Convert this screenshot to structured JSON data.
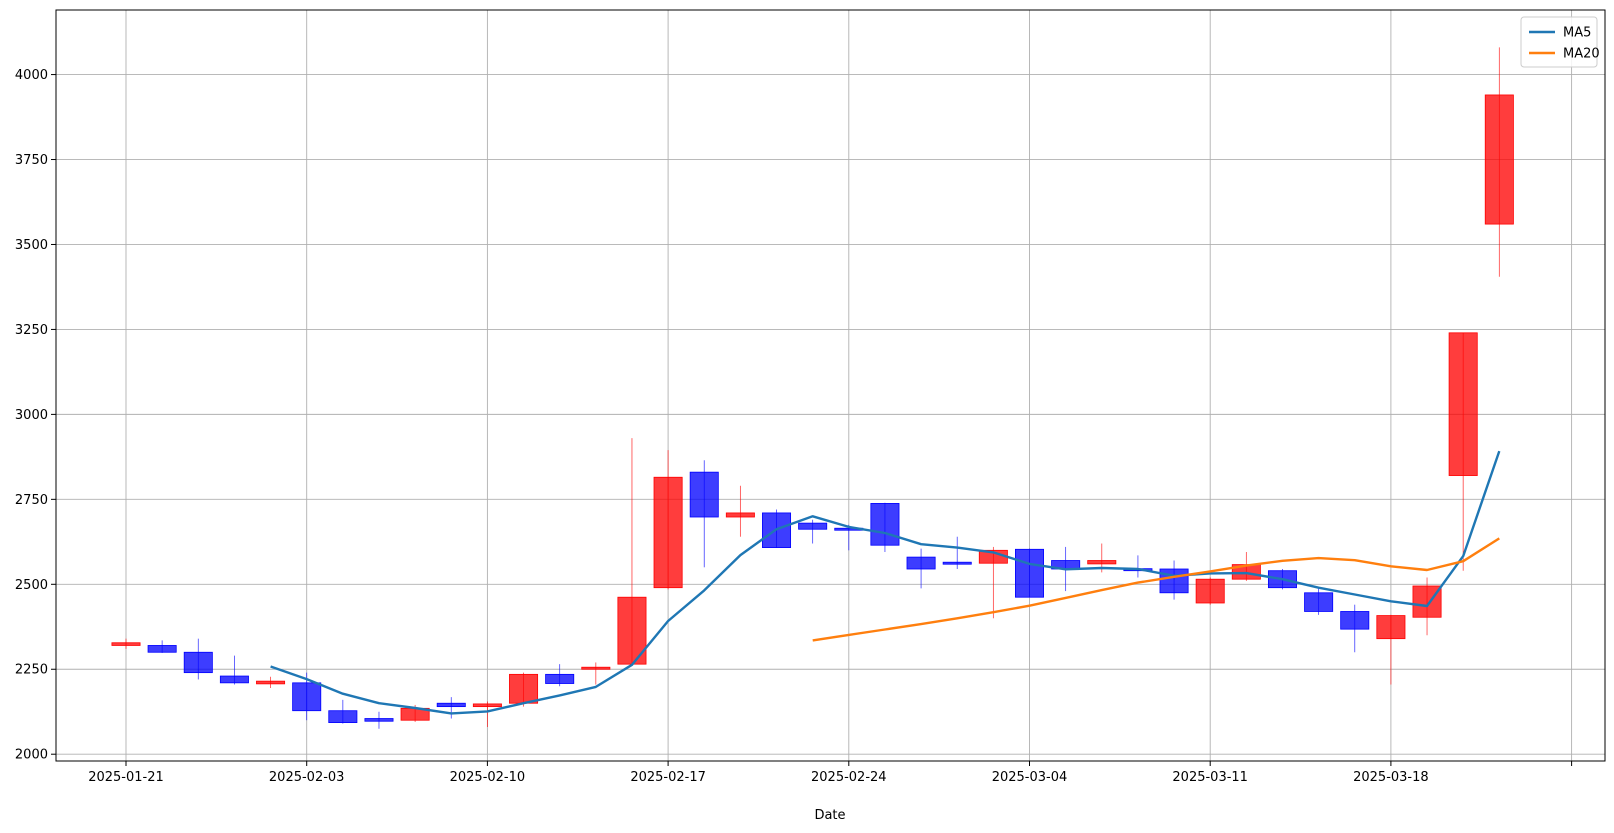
{
  "chart_data": {
    "type": "candlestick",
    "title": "",
    "xlabel": "Date",
    "ylabel": "",
    "ylim": [
      1980,
      4190
    ],
    "y_ticks": [
      2000,
      2250,
      2500,
      2750,
      3000,
      3250,
      3500,
      3750,
      4000
    ],
    "x_ticks": [
      {
        "label": "2025-01-21",
        "index": 0
      },
      {
        "label": "2025-02-03",
        "index": 5
      },
      {
        "label": "2025-02-10",
        "index": 10
      },
      {
        "label": "2025-02-17",
        "index": 15
      },
      {
        "label": "2025-02-24",
        "index": 20
      },
      {
        "label": "2025-03-04",
        "index": 25
      },
      {
        "label": "2025-03-11",
        "index": 30
      },
      {
        "label": "2025-03-18",
        "index": 35
      },
      {
        "label": "",
        "index": 40
      }
    ],
    "grid": true,
    "legend_position": "top-right",
    "up_color": "#ff0000",
    "down_color": "#0000ff",
    "candles": [
      {
        "o": 2320,
        "h": 2340,
        "l": 2310,
        "c": 2328
      },
      {
        "o": 2320,
        "h": 2335,
        "l": 2298,
        "c": 2300
      },
      {
        "o": 2300,
        "h": 2340,
        "l": 2220,
        "c": 2240
      },
      {
        "o": 2230,
        "h": 2290,
        "l": 2205,
        "c": 2210
      },
      {
        "o": 2207,
        "h": 2228,
        "l": 2195,
        "c": 2215
      },
      {
        "o": 2210,
        "h": 2240,
        "l": 2100,
        "c": 2128
      },
      {
        "o": 2128,
        "h": 2160,
        "l": 2090,
        "c": 2093
      },
      {
        "o": 2105,
        "h": 2125,
        "l": 2075,
        "c": 2097
      },
      {
        "o": 2100,
        "h": 2145,
        "l": 2095,
        "c": 2135
      },
      {
        "o": 2150,
        "h": 2168,
        "l": 2105,
        "c": 2140
      },
      {
        "o": 2140,
        "h": 2155,
        "l": 2080,
        "c": 2148
      },
      {
        "o": 2150,
        "h": 2240,
        "l": 2140,
        "c": 2235
      },
      {
        "o": 2235,
        "h": 2265,
        "l": 2200,
        "c": 2208
      },
      {
        "o": 2250,
        "h": 2270,
        "l": 2205,
        "c": 2256
      },
      {
        "o": 2265,
        "h": 2930,
        "l": 2260,
        "c": 2462
      },
      {
        "o": 2490,
        "h": 2895,
        "l": 2485,
        "c": 2815
      },
      {
        "o": 2830,
        "h": 2865,
        "l": 2550,
        "c": 2698
      },
      {
        "o": 2698,
        "h": 2790,
        "l": 2640,
        "c": 2710
      },
      {
        "o": 2710,
        "h": 2720,
        "l": 2608,
        "c": 2608
      },
      {
        "o": 2680,
        "h": 2690,
        "l": 2620,
        "c": 2662
      },
      {
        "o": 2665,
        "h": 2675,
        "l": 2600,
        "c": 2660
      },
      {
        "o": 2738,
        "h": 2740,
        "l": 2595,
        "c": 2615
      },
      {
        "o": 2580,
        "h": 2605,
        "l": 2488,
        "c": 2545
      },
      {
        "o": 2565,
        "h": 2640,
        "l": 2545,
        "c": 2563
      },
      {
        "o": 2562,
        "h": 2610,
        "l": 2400,
        "c": 2600
      },
      {
        "o": 2603,
        "h": 2605,
        "l": 2462,
        "c": 2462
      },
      {
        "o": 2570,
        "h": 2610,
        "l": 2480,
        "c": 2545
      },
      {
        "o": 2560,
        "h": 2620,
        "l": 2535,
        "c": 2570
      },
      {
        "o": 2546,
        "h": 2585,
        "l": 2520,
        "c": 2540
      },
      {
        "o": 2545,
        "h": 2570,
        "l": 2455,
        "c": 2475
      },
      {
        "o": 2445,
        "h": 2520,
        "l": 2440,
        "c": 2515
      },
      {
        "o": 2515,
        "h": 2595,
        "l": 2510,
        "c": 2558
      },
      {
        "o": 2540,
        "h": 2545,
        "l": 2485,
        "c": 2490
      },
      {
        "o": 2475,
        "h": 2490,
        "l": 2410,
        "c": 2420
      },
      {
        "o": 2420,
        "h": 2440,
        "l": 2300,
        "c": 2368
      },
      {
        "o": 2340,
        "h": 2410,
        "l": 2205,
        "c": 2408
      },
      {
        "o": 2403,
        "h": 2520,
        "l": 2350,
        "c": 2495
      },
      {
        "o": 2820,
        "h": 3240,
        "l": 2540,
        "c": 3240
      },
      {
        "o": 3560,
        "h": 4080,
        "l": 3405,
        "c": 3940
      }
    ],
    "series": [
      {
        "name": "MA5",
        "color": "#1f77b4",
        "start_index": 4,
        "values": [
          2258,
          2221,
          2178,
          2150,
          2136,
          2120,
          2126,
          2150,
          2173,
          2198,
          2263,
          2392,
          2482,
          2586,
          2662,
          2700,
          2669,
          2651,
          2618,
          2608,
          2594,
          2560,
          2544,
          2548,
          2545,
          2525,
          2532,
          2533,
          2515,
          2490,
          2470,
          2450,
          2436,
          2583,
          2892
        ]
      },
      {
        "name": "MA20",
        "color": "#ff7f0e",
        "start_index": 19,
        "values": [
          2335,
          2351,
          2367,
          2383,
          2400,
          2418,
          2437,
          2460,
          2483,
          2505,
          2522,
          2538,
          2555,
          2569,
          2577,
          2571,
          2553,
          2542,
          2568,
          2635
        ]
      }
    ]
  }
}
